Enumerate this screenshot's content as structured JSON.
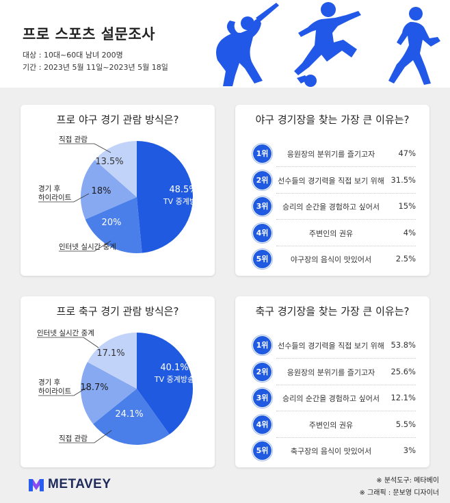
{
  "header": {
    "title": "프로 스포츠 설문조사",
    "target": "대상 : 10대~60대 남녀 200명",
    "period": "기간 : 2023년 5월 11일~2023년 5월 18일"
  },
  "chart_data": [
    {
      "type": "pie",
      "title": "프로 야구 경기 관람 방식은?",
      "slices": [
        {
          "label": "TV 중계방송",
          "value": 48.5,
          "color": "#1f5ae0"
        },
        {
          "label": "인터넷 실시간 중계",
          "value": 20,
          "color": "#4a7ee8"
        },
        {
          "label": "경기 후 하이라이트",
          "value": 18,
          "color": "#87a9f2"
        },
        {
          "label": "직접 관람",
          "value": 13.5,
          "color": "#c2d3f9"
        }
      ],
      "display": [
        "48.5%",
        "20%",
        "18%",
        "13.5%"
      ]
    },
    {
      "type": "pie",
      "title": "프로 축구 경기 관람 방식은?",
      "slices": [
        {
          "label": "TV 중계방송",
          "value": 40.1,
          "color": "#1f5ae0"
        },
        {
          "label": "직접 관람",
          "value": 24.1,
          "color": "#4a7ee8"
        },
        {
          "label": "경기 후 하이라이트",
          "value": 18.7,
          "color": "#87a9f2"
        },
        {
          "label": "인터넷 실시간 중계",
          "value": 17.1,
          "color": "#c2d3f9"
        }
      ],
      "display": [
        "40.1%",
        "24.1%",
        "18.7%",
        "17.1%"
      ]
    },
    {
      "type": "table",
      "title": "야구 경기장을 찾는 가장 큰 이유는?",
      "rows": [
        {
          "rank": "1위",
          "reason": "응원장의 분위기를 즐기고자",
          "value": "47%"
        },
        {
          "rank": "2위",
          "reason": "선수들의 경기력을 직접 보기 위해",
          "value": "31.5%"
        },
        {
          "rank": "3위",
          "reason": "승리의 순간을 경험하고 싶어서",
          "value": "15%"
        },
        {
          "rank": "4위",
          "reason": "주변인의 권유",
          "value": "4%"
        },
        {
          "rank": "5위",
          "reason": "야구장의 음식이 맛있어서",
          "value": "2.5%"
        }
      ]
    },
    {
      "type": "table",
      "title": "축구 경기장을 찾는 가장 큰 이유는?",
      "rows": [
        {
          "rank": "1위",
          "reason": "선수들의 경기력을 직접 보기 위해",
          "value": "53.8%"
        },
        {
          "rank": "2위",
          "reason": "응원장의 분위기를 즐기고자",
          "value": "25.6%"
        },
        {
          "rank": "3위",
          "reason": "승리의 순간을 경험하고 싶어서",
          "value": "12.1%"
        },
        {
          "rank": "4위",
          "reason": "주변인의 권유",
          "value": "5.5%"
        },
        {
          "rank": "5위",
          "reason": "축구장의 음식이 맛있어서",
          "value": "3%"
        }
      ]
    }
  ],
  "footer": {
    "brand": "METAVEY",
    "credit1": "※ 분석도구: 메타베이",
    "credit2": "※ 그래픽 : 문보영 디자이너"
  }
}
